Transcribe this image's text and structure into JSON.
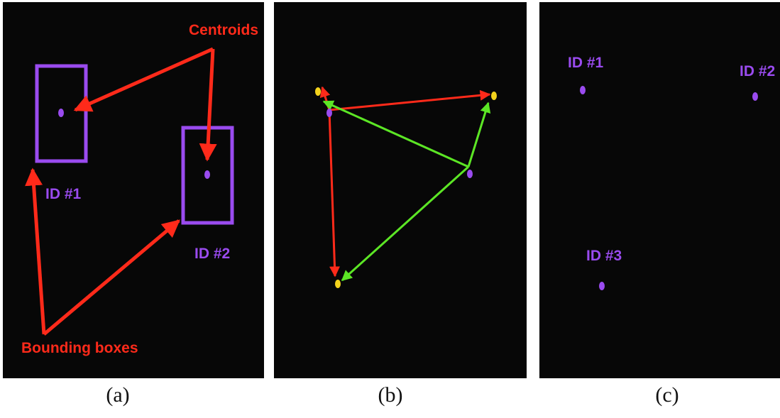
{
  "panels": {
    "a": {
      "caption": "(a)",
      "centroids_label": "Centroids",
      "bounding_boxes_label": "Bounding boxes",
      "objects": [
        {
          "id_label": "ID #1"
        },
        {
          "id_label": "ID #2"
        }
      ]
    },
    "b": {
      "caption": "(b)"
    },
    "c": {
      "caption": "(c)",
      "objects": [
        {
          "id_label": "ID #1"
        },
        {
          "id_label": "ID #2"
        },
        {
          "id_label": "ID #3"
        }
      ]
    }
  },
  "colors": {
    "background": "#070707",
    "object": "#9a4bef",
    "annotation_arrow": "#ff2a1a",
    "distance_to_new": "#ff2a1a",
    "distance_to_existing": "#5ce625",
    "new_centroid": "#f3d21c"
  }
}
